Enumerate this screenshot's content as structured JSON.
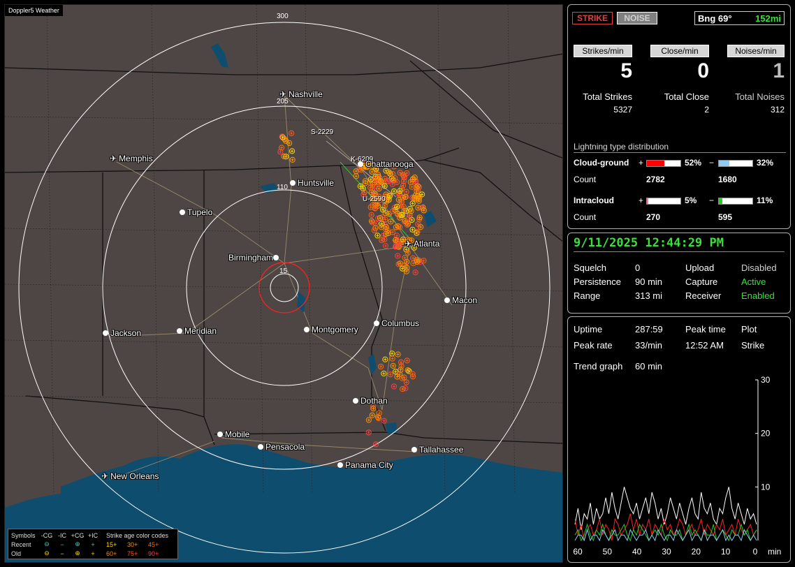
{
  "map": {
    "title": "Doppler5 Weather",
    "ring_labels": [
      "300",
      "205",
      "110",
      "15"
    ],
    "storm_labels": [
      "S-2229",
      "K-6209",
      "U-2590"
    ],
    "cities": [
      {
        "name": "Nashville",
        "icon": "airport-icon"
      },
      {
        "name": "Memphis",
        "icon": "airport-icon"
      },
      {
        "name": "Chattanooga",
        "icon": "city-dot"
      },
      {
        "name": "Huntsville",
        "icon": "city-dot"
      },
      {
        "name": "Tupelo",
        "icon": "city-dot"
      },
      {
        "name": "Atlanta",
        "icon": "airport-icon"
      },
      {
        "name": "Birmingham",
        "icon": "city-dot"
      },
      {
        "name": "Macon",
        "icon": "city-dot"
      },
      {
        "name": "Jackson",
        "icon": "city-dot"
      },
      {
        "name": "Meridian",
        "icon": "city-dot"
      },
      {
        "name": "Montgomery",
        "icon": "city-dot"
      },
      {
        "name": "Columbus",
        "icon": "city-dot"
      },
      {
        "name": "Dothan",
        "icon": "city-dot"
      },
      {
        "name": "Mobile",
        "icon": "city-dot"
      },
      {
        "name": "Pensacola",
        "icon": "city-dot"
      },
      {
        "name": "Tallahassee",
        "icon": "city-dot"
      },
      {
        "name": "Panama City",
        "icon": "city-dot"
      },
      {
        "name": "New Orleans",
        "icon": "airport-icon"
      }
    ],
    "legend": {
      "symbols_label": "Symbols",
      "headers": [
        "-CG",
        "-IC",
        "+CG",
        "+IC"
      ],
      "age_title": "Strike age color codes",
      "recent_label": "Recent",
      "old_label": "Old",
      "recent_symbols": [
        "⊖",
        "−",
        "⊕",
        "+"
      ],
      "old_symbols": [
        "⊖",
        "−",
        "⊕",
        "+"
      ],
      "recent_ages": [
        "15+",
        "30+",
        "45+"
      ],
      "old_ages": [
        "60+",
        "75+",
        "90+"
      ],
      "age_colors": [
        "#ffd700",
        "#ff9900",
        "#ff6a00",
        "#ff8c00",
        "#ff5a1e",
        "#ff4040"
      ]
    }
  },
  "status": {
    "strike_label": "STRIKE",
    "noise_label": "NOISE",
    "bearing": "Bng 69°",
    "distance": "152mi",
    "strikes_min_label": "Strikes/min",
    "close_min_label": "Close/min",
    "noises_min_label": "Noises/min",
    "strikes_min": "5",
    "close_min": "0",
    "noises_min": "1",
    "total_strikes_label": "Total Strikes",
    "total_close_label": "Total Close",
    "total_noises_label": "Total Noises",
    "total_strikes": "5327",
    "total_close": "2",
    "total_noises": "312"
  },
  "distribution": {
    "title": "Lightning type distribution",
    "cloud_ground_label": "Cloud-ground",
    "intracloud_label": "Intracloud",
    "count_label": "Count",
    "plus": "+",
    "minus": "−",
    "cg_pos_pct": "52%",
    "cg_neg_pct": "32%",
    "cg_pos_count": "2782",
    "cg_neg_count": "1680",
    "ic_pos_pct": "5%",
    "ic_neg_pct": "11%",
    "ic_pos_count": "270",
    "ic_neg_count": "595",
    "cg_pos_fraction": 0.52,
    "cg_neg_fraction": 0.32,
    "ic_pos_fraction": 0.05,
    "ic_neg_fraction": 0.11,
    "colors": {
      "cg_pos": "#ff0000",
      "cg_neg": "#8fc8f0",
      "ic_pos": "#ff70a0",
      "ic_neg": "#20d020"
    }
  },
  "settings": {
    "datetime": "9/11/2025 12:44:29 PM",
    "squelch_label": "Squelch",
    "squelch": "0",
    "persistence_label": "Persistence",
    "persistence": "90 min",
    "range_label": "Range",
    "range": "313 mi",
    "upload_label": "Upload",
    "upload": "Disabled",
    "capture_label": "Capture",
    "capture": "Active",
    "receiver_label": "Receiver",
    "receiver": "Enabled"
  },
  "stats": {
    "uptime_label": "Uptime",
    "uptime": "287:59",
    "peak_time_label": "Peak time",
    "peak_time": "12:52 AM",
    "plot_label": "Plot",
    "peak_rate_label": "Peak rate",
    "peak_rate": "33/min",
    "plot": "Strike",
    "trend_label": "Trend graph",
    "trend": "60 min"
  },
  "chart_data": {
    "type": "line",
    "x_ticks": [
      "60",
      "50",
      "40",
      "30",
      "20",
      "10",
      "0"
    ],
    "x_unit": "min",
    "y_ticks": [
      "30",
      "20",
      "10"
    ],
    "ylim": [
      0,
      30
    ],
    "series": [
      {
        "color": "#ffffff",
        "values": [
          3,
          6,
          2,
          5,
          4,
          7,
          3,
          6,
          4,
          5,
          8,
          5,
          9,
          6,
          4,
          7,
          10,
          8,
          6,
          5,
          7,
          4,
          6,
          8,
          5,
          9,
          7,
          4,
          6,
          3,
          5,
          8,
          6,
          4,
          7,
          5,
          3,
          6,
          8,
          5,
          4,
          9,
          6,
          5,
          7,
          4,
          3,
          6,
          5,
          8,
          10,
          6,
          4,
          7,
          5,
          3,
          6,
          4,
          5,
          3
        ]
      },
      {
        "color": "#ff2020",
        "values": [
          4,
          1,
          3,
          0,
          2,
          3,
          1,
          2,
          4,
          1,
          3,
          2,
          0,
          4,
          3,
          1,
          2,
          3,
          5,
          2,
          4,
          1,
          3,
          2,
          4,
          1,
          3,
          2,
          1,
          4,
          2,
          3,
          1,
          2,
          4,
          3,
          1,
          2,
          3,
          1,
          2,
          4,
          1,
          3,
          2,
          1,
          3,
          2,
          4,
          1,
          2,
          3,
          1,
          4,
          2,
          1,
          2,
          3,
          1,
          2
        ]
      },
      {
        "color": "#20d020",
        "values": [
          1,
          2,
          0,
          1,
          3,
          1,
          0,
          2,
          1,
          3,
          1,
          0,
          2,
          1,
          1,
          2,
          3,
          1,
          0,
          2,
          1,
          3,
          2,
          1,
          0,
          1,
          2,
          1,
          3,
          1,
          0,
          2,
          1,
          1,
          2,
          0,
          1,
          3,
          1,
          2,
          1,
          0,
          2,
          1,
          1,
          3,
          0,
          1,
          2,
          1,
          0,
          2,
          1,
          1,
          3,
          1,
          2,
          0,
          1,
          2
        ]
      },
      {
        "color": "#8fc8f0",
        "values": [
          0,
          1,
          1,
          0,
          2,
          0,
          1,
          1,
          0,
          2,
          1,
          0,
          1,
          2,
          0,
          1,
          1,
          0,
          2,
          1,
          0,
          1,
          1,
          2,
          0,
          1,
          0,
          2,
          1,
          0,
          1,
          1,
          0,
          2,
          1,
          0,
          1,
          2,
          0,
          1,
          1,
          0,
          2,
          0,
          1,
          1,
          0,
          1,
          2,
          0,
          1,
          0,
          1,
          1,
          0,
          2,
          1,
          0,
          1,
          0
        ]
      }
    ]
  }
}
